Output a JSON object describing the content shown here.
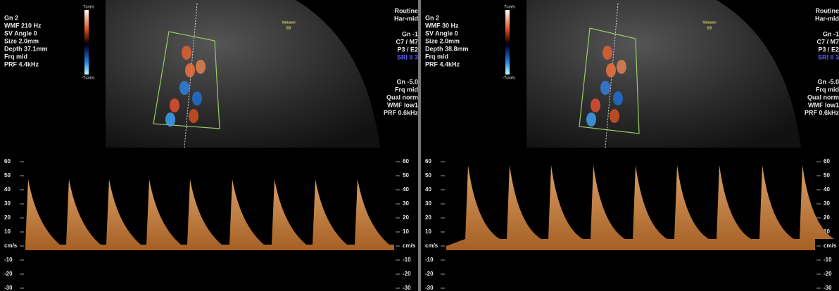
{
  "panels": [
    {
      "params_left": [
        "Gn  2",
        "WMF 210 Hz",
        "SV Angle  0",
        "Size  2.0mm",
        "Depth 37.1mm",
        "Frq mid",
        "PRF  4.4kHz"
      ],
      "params_right_top": [
        "Routine",
        "Har-mid",
        "",
        "Gn  -1",
        "C7 / M7",
        "P3 / E2",
        "SRI II 3"
      ],
      "params_right_bottom": [
        "Gn -5.0",
        "Frq mid",
        "Qual norm",
        "WMF low1",
        "PRF  0.6kHz"
      ],
      "scale_top": "7cm/s",
      "scale_bottom": "-7cm/s",
      "logo": [
        "Voluson",
        "E8"
      ],
      "axis": [
        "60",
        "50",
        "40",
        "30",
        "20",
        "10",
        "cm/s",
        "-10",
        "-20",
        "-30"
      ]
    },
    {
      "params_left": [
        "Gn  2",
        "WMF 30 Hz",
        "SV Angle  0",
        "Size  2.0mm",
        "Depth 38.8mm",
        "Frq mid",
        "PRF  4.4kHz"
      ],
      "params_right_top": [
        "Routine",
        "Har-mid",
        "",
        "Gn  -1",
        "C7 / M7",
        "P3 / E2",
        "SRI II 3"
      ],
      "params_right_bottom": [
        "Gn -5.0",
        "Frq mid",
        "Qual norm",
        "WMF low1",
        "PRF  0.6kHz"
      ],
      "scale_top": "7cm/s",
      "scale_bottom": "-7cm/s",
      "logo": [
        "Voluson",
        "E8"
      ],
      "axis": [
        "60",
        "50",
        "40",
        "30",
        "20",
        "10",
        "cm/s",
        "-10",
        "-20",
        "-30"
      ]
    }
  ]
}
